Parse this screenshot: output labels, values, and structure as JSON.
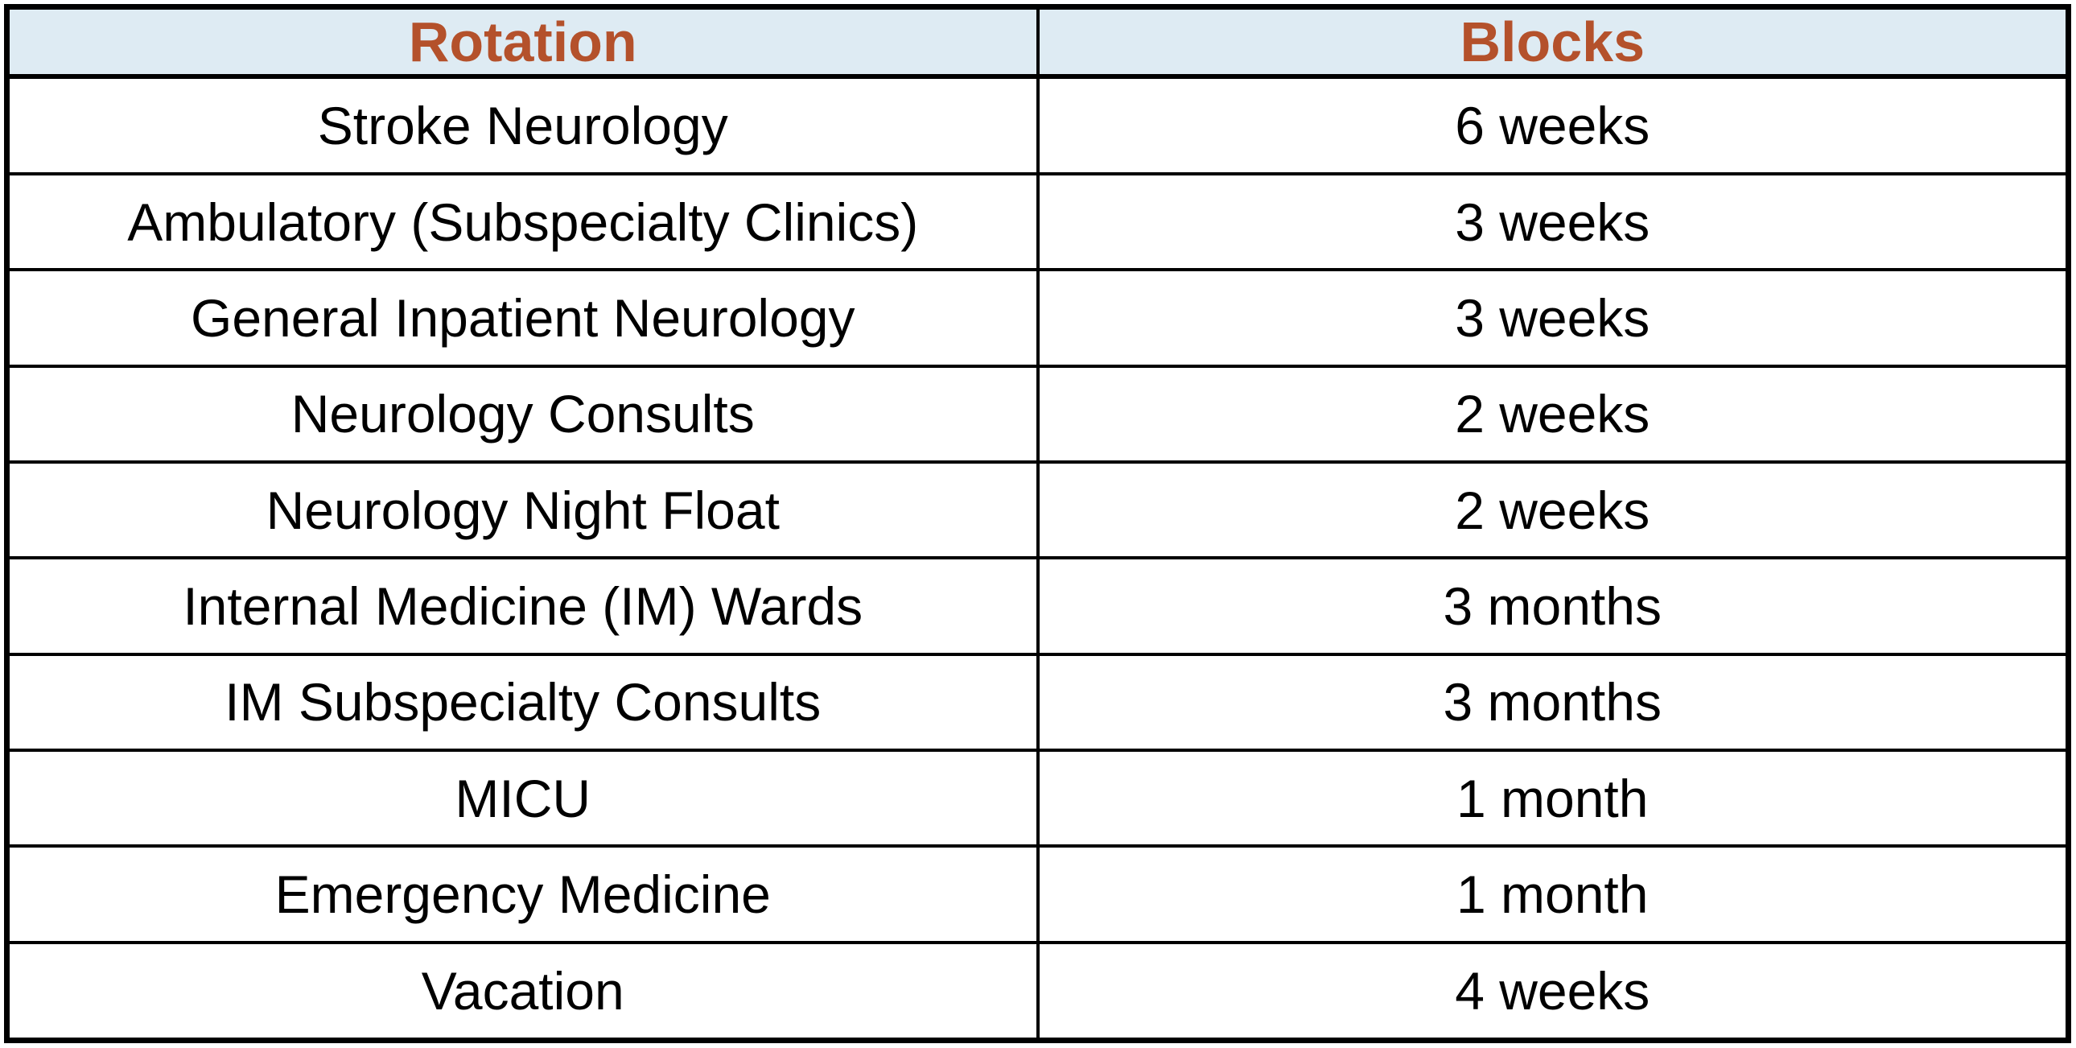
{
  "table": {
    "headers": {
      "rotation": "Rotation",
      "blocks": "Blocks"
    },
    "rows": [
      {
        "rotation": "Stroke Neurology",
        "blocks": "6 weeks"
      },
      {
        "rotation": "Ambulatory (Subspecialty Clinics)",
        "blocks": "3 weeks"
      },
      {
        "rotation": "General Inpatient Neurology",
        "blocks": "3 weeks"
      },
      {
        "rotation": "Neurology Consults",
        "blocks": "2 weeks"
      },
      {
        "rotation": "Neurology Night Float",
        "blocks": "2 weeks"
      },
      {
        "rotation": "Internal Medicine (IM) Wards",
        "blocks": "3 months"
      },
      {
        "rotation": "IM Subspecialty Consults",
        "blocks": "3 months"
      },
      {
        "rotation": "MICU",
        "blocks": "1 month"
      },
      {
        "rotation": "Emergency Medicine",
        "blocks": "1 month"
      },
      {
        "rotation": "Vacation",
        "blocks": "4 weeks"
      }
    ],
    "colors": {
      "header_bg": "#DEEBF3",
      "header_text": "#B4512B",
      "body_text": "#000000",
      "grid_border": "#000000"
    }
  }
}
